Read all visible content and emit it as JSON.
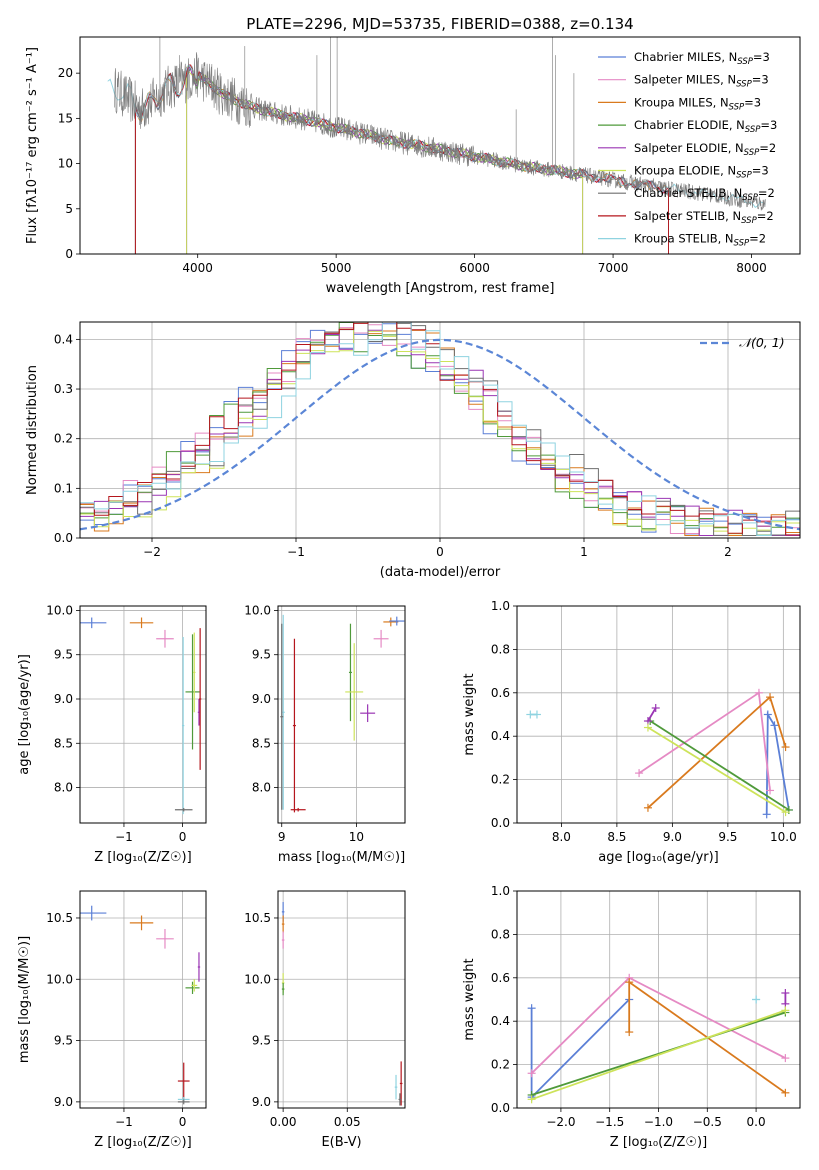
{
  "figure": {
    "title": "PLATE=2296, MJD=53735, FIBERID=0388, z=0.134"
  },
  "series_styles": [
    {
      "name": "Chabrier MILES",
      "color": "#5b7fd6"
    },
    {
      "name": "Salpeter MILES",
      "color": "#e58ac4"
    },
    {
      "name": "Kroupa MILES",
      "color": "#d97a1e"
    },
    {
      "name": "Chabrier ELODIE",
      "color": "#4f9a3a"
    },
    {
      "name": "Salpeter ELODIE",
      "color": "#9a35b4"
    },
    {
      "name": "Kroupa ELODIE",
      "color": "#cde35a"
    },
    {
      "name": "Chabrier STELIB",
      "color": "#6f6f6f"
    },
    {
      "name": "Salpeter STELIB",
      "color": "#b5161d"
    },
    {
      "name": "Kroupa STELIB",
      "color": "#8fd3e0"
    }
  ],
  "chart_data": [
    {
      "id": "spectrum",
      "type": "line",
      "xlabel": "wavelength [Angstrom, rest frame]",
      "ylabel": "Flux [fλ10⁻¹⁷ erg cm⁻² s⁻¹ A⁻¹]",
      "xlim": [
        3150,
        8350
      ],
      "ylim": [
        0,
        24
      ],
      "xticks": [
        4000,
        5000,
        6000,
        7000,
        8000
      ],
      "yticks": [
        0,
        5,
        10,
        15,
        20
      ],
      "legend_position": "top-right",
      "legend": [
        {
          "label": "Chabrier MILES, N",
          "sub": "SSP",
          "tail": "=3",
          "series": 0
        },
        {
          "label": "Salpeter MILES, N",
          "sub": "SSP",
          "tail": "=3",
          "series": 1
        },
        {
          "label": "Kroupa MILES, N",
          "sub": "SSP",
          "tail": "=3",
          "series": 2
        },
        {
          "label": "Chabrier ELODIE, N",
          "sub": "SSP",
          "tail": "=3",
          "series": 3
        },
        {
          "label": "Salpeter ELODIE, N",
          "sub": "SSP",
          "tail": "=2",
          "series": 4
        },
        {
          "label": "Kroupa ELODIE, N",
          "sub": "SSP",
          "tail": "=3",
          "series": 5
        },
        {
          "label": "Chabrier STELIB, N",
          "sub": "SSP",
          "tail": "=2",
          "series": 6
        },
        {
          "label": "Salpeter STELIB, N",
          "sub": "SSP",
          "tail": "=2",
          "series": 7
        },
        {
          "label": "Kroupa STELIB, N",
          "sub": "SSP",
          "tail": "=2",
          "series": 8
        }
      ],
      "data_series": {
        "x": [
          3400,
          3600,
          3800,
          4000,
          4200,
          4400,
          4600,
          4800,
          5000,
          5200,
          5400,
          5600,
          5800,
          6000,
          6200,
          6400,
          6600,
          6800,
          7000,
          7200,
          7400,
          7600,
          7800,
          8000,
          8100
        ],
        "y": [
          18.3,
          16.0,
          18.5,
          19.8,
          17.5,
          16.2,
          15.4,
          14.8,
          14.0,
          13.3,
          12.5,
          12.0,
          11.4,
          10.8,
          10.2,
          9.6,
          9.2,
          8.7,
          8.2,
          7.7,
          7.2,
          6.8,
          6.3,
          5.8,
          5.5
        ]
      },
      "model_ranges": [
        {
          "series": 0,
          "xmin": 3550,
          "xmax": 7400
        },
        {
          "series": 1,
          "xmin": 3550,
          "xmax": 7400
        },
        {
          "series": 2,
          "xmin": 3550,
          "xmax": 7400
        },
        {
          "series": 3,
          "xmin": 3920,
          "xmax": 6780
        },
        {
          "series": 4,
          "xmin": 3920,
          "xmax": 6780
        },
        {
          "series": 5,
          "xmin": 3920,
          "xmax": 6780
        },
        {
          "series": 6,
          "xmin": 3550,
          "xmax": 7400
        },
        {
          "series": 7,
          "xmin": 3550,
          "xmax": 7400
        },
        {
          "series": 8,
          "xmin": 3350,
          "xmax": 8100
        }
      ]
    },
    {
      "id": "residuals",
      "type": "line",
      "xlabel": "(data-model)/error",
      "ylabel": "Normed distribution",
      "xlim": [
        -2.5,
        2.5
      ],
      "ylim": [
        0,
        0.435
      ],
      "xticks": [
        -2,
        -1,
        0,
        1,
        2
      ],
      "yticks": [
        0.0,
        0.1,
        0.2,
        0.3,
        0.4
      ],
      "legend_position": "top-right",
      "legend": [
        {
          "label": "𝒩(0, 1)"
        }
      ],
      "gaussian": {
        "mu": 0,
        "sigma": 1
      },
      "hist_bin_width": 0.1,
      "hist_start": -2.5,
      "hist_peaks": [
        -0.55,
        -0.5,
        -0.45,
        -0.55,
        -0.45,
        -0.45,
        -0.4,
        -0.5,
        -0.35
      ],
      "hist_widths": [
        0.85,
        0.85,
        0.8,
        0.85,
        0.85,
        0.8,
        0.85,
        0.85,
        0.85
      ],
      "hist_heights": [
        0.39,
        0.4,
        0.41,
        0.39,
        0.4,
        0.39,
        0.4,
        0.41,
        0.39
      ]
    },
    {
      "id": "age-vs-Z",
      "type": "scatter",
      "xlabel": "Z [log₁₀(Z/Z☉)]",
      "ylabel": "age  [log₁₀(age/yr)]",
      "xlim": [
        -1.75,
        0.4
      ],
      "ylim": [
        7.6,
        10.05
      ],
      "xticks": [
        -1,
        0
      ],
      "yticks": [
        8.0,
        8.5,
        9.0,
        9.5,
        10.0
      ],
      "points": [
        {
          "series": 0,
          "x": -1.55,
          "y": 9.86,
          "xerr": 0.25,
          "yerr": 0.06
        },
        {
          "series": 2,
          "x": -0.7,
          "y": 9.86,
          "xerr": 0.2,
          "yerr": 0.06
        },
        {
          "series": 1,
          "x": -0.3,
          "y": 9.68,
          "xerr": 0.15,
          "yerr": 0.1
        },
        {
          "series": 8,
          "x": 0.01,
          "y": 8.7,
          "xerr": 0.02,
          "yerr": 1.0
        },
        {
          "series": 6,
          "x": 0.02,
          "y": 7.75,
          "xerr": 0.15,
          "yerr": 0.02
        },
        {
          "series": 3,
          "x": 0.17,
          "y": 9.08,
          "xerr": 0.12,
          "yerr": 0.65
        },
        {
          "series": 5,
          "x": 0.2,
          "y": 9.3,
          "xerr": 0.02,
          "yerr": 0.45
        },
        {
          "series": 4,
          "x": 0.28,
          "y": 8.85,
          "xerr": 0.02,
          "yerr": 0.15
        },
        {
          "series": 7,
          "x": 0.3,
          "y": 9.0,
          "xerr": 0.02,
          "yerr": 0.8
        }
      ]
    },
    {
      "id": "age-vs-mass",
      "type": "scatter",
      "xlabel": "mass [log₁₀(M/M☉)]",
      "ylabel": "",
      "xlim": [
        8.95,
        10.65
      ],
      "ylim": [
        7.6,
        10.05
      ],
      "xticks": [
        9,
        10
      ],
      "yticks": [
        8.0,
        8.5,
        9.0,
        9.5,
        10.0
      ],
      "points": [
        {
          "series": 8,
          "x": 9.02,
          "y": 8.85,
          "xerr": 0.02,
          "yerr": 1.1
        },
        {
          "series": 6,
          "x": 9.0,
          "y": 8.8,
          "xerr": 0.02,
          "yerr": 1.05
        },
        {
          "series": 7,
          "x": 9.17,
          "y": 8.7,
          "xerr": 0.02,
          "yerr": 0.98
        },
        {
          "series": 7,
          "x": 9.22,
          "y": 7.75,
          "xerr": 0.1,
          "yerr": 0.02
        },
        {
          "series": 3,
          "x": 9.92,
          "y": 9.3,
          "xerr": 0.02,
          "yerr": 0.55
        },
        {
          "series": 5,
          "x": 9.97,
          "y": 9.08,
          "xerr": 0.12,
          "yerr": 0.55
        },
        {
          "series": 4,
          "x": 10.15,
          "y": 8.84,
          "xerr": 0.1,
          "yerr": 0.1
        },
        {
          "series": 1,
          "x": 10.33,
          "y": 9.68,
          "xerr": 0.1,
          "yerr": 0.1
        },
        {
          "series": 2,
          "x": 10.46,
          "y": 9.87,
          "xerr": 0.1,
          "yerr": 0.05
        },
        {
          "series": 0,
          "x": 10.54,
          "y": 9.88,
          "xerr": 0.1,
          "yerr": 0.05
        }
      ]
    },
    {
      "id": "massweight-vs-age",
      "type": "line",
      "xlabel": "age  [log₁₀(age/yr)]",
      "ylabel": "mass weight",
      "xlim": [
        7.6,
        10.15
      ],
      "ylim": [
        0,
        1.0
      ],
      "xticks": [
        8.0,
        8.5,
        9.0,
        9.5,
        10.0
      ],
      "yticks": [
        0.0,
        0.2,
        0.4,
        0.6,
        0.8,
        1.0
      ],
      "series": [
        {
          "series": 8,
          "x": [
            7.72,
            7.78
          ],
          "y": [
            0.5,
            0.5
          ]
        },
        {
          "series": 0,
          "x": [
            9.85,
            9.86,
            9.92,
            10.05
          ],
          "y": [
            0.04,
            0.5,
            0.45,
            0.06
          ]
        },
        {
          "series": 1,
          "x": [
            8.7,
            9.78,
            9.88
          ],
          "y": [
            0.23,
            0.6,
            0.15
          ]
        },
        {
          "series": 2,
          "x": [
            8.78,
            9.88,
            10.02
          ],
          "y": [
            0.07,
            0.58,
            0.35
          ]
        },
        {
          "series": 3,
          "x": [
            8.8,
            10.05
          ],
          "y": [
            0.47,
            0.06
          ]
        },
        {
          "series": 4,
          "x": [
            8.78,
            8.85
          ],
          "y": [
            0.47,
            0.53
          ]
        },
        {
          "series": 5,
          "x": [
            8.78,
            10.02
          ],
          "y": [
            0.44,
            0.05
          ]
        }
      ]
    },
    {
      "id": "mass-vs-Z",
      "type": "scatter",
      "xlabel": "Z [log₁₀(Z/Z☉)]",
      "ylabel": "mass [log₁₀(M/M☉)]",
      "xlim": [
        -1.75,
        0.4
      ],
      "ylim": [
        8.95,
        10.72
      ],
      "xticks": [
        -1,
        0
      ],
      "yticks": [
        9.0,
        9.5,
        10.0,
        10.5
      ],
      "points": [
        {
          "series": 0,
          "x": -1.55,
          "y": 10.54,
          "xerr": 0.25,
          "yerr": 0.06
        },
        {
          "series": 2,
          "x": -0.7,
          "y": 10.46,
          "xerr": 0.2,
          "yerr": 0.06
        },
        {
          "series": 1,
          "x": -0.3,
          "y": 10.33,
          "xerr": 0.15,
          "yerr": 0.08
        },
        {
          "series": 4,
          "x": 0.28,
          "y": 10.1,
          "xerr": 0.02,
          "yerr": 0.12
        },
        {
          "series": 3,
          "x": 0.17,
          "y": 9.93,
          "xerr": 0.12,
          "yerr": 0.05
        },
        {
          "series": 5,
          "x": 0.2,
          "y": 9.95,
          "xerr": 0.05,
          "yerr": 0.05
        },
        {
          "series": 7,
          "x": 0.02,
          "y": 9.17,
          "xerr": 0.1,
          "yerr": 0.15
        },
        {
          "series": 8,
          "x": 0.02,
          "y": 9.02,
          "xerr": 0.1,
          "yerr": 0.02
        },
        {
          "series": 6,
          "x": 0.02,
          "y": 9.0,
          "xerr": 0.1,
          "yerr": 0.02
        }
      ]
    },
    {
      "id": "mass-vs-EBV",
      "type": "scatter",
      "xlabel": "E(B-V)",
      "ylabel": "",
      "xlim": [
        -0.004,
        0.095
      ],
      "ylim": [
        8.95,
        10.72
      ],
      "xticks": [
        0.0,
        0.05
      ],
      "yticks": [
        9.0,
        9.5,
        10.0,
        10.5
      ],
      "points": [
        {
          "series": 0,
          "x": 0.0,
          "y": 10.55,
          "xerr": 0.001,
          "yerr": 0.08
        },
        {
          "series": 2,
          "x": 0.0,
          "y": 10.45,
          "xerr": 0.001,
          "yerr": 0.07
        },
        {
          "series": 1,
          "x": 0.0,
          "y": 10.32,
          "xerr": 0.001,
          "yerr": 0.07
        },
        {
          "series": 5,
          "x": 0.0,
          "y": 9.97,
          "xerr": 0.001,
          "yerr": 0.08
        },
        {
          "series": 3,
          "x": 0.0,
          "y": 9.92,
          "xerr": 0.001,
          "yerr": 0.05
        },
        {
          "series": 8,
          "x": 0.088,
          "y": 9.12,
          "xerr": 0.001,
          "yerr": 0.1
        },
        {
          "series": 7,
          "x": 0.092,
          "y": 9.15,
          "xerr": 0.001,
          "yerr": 0.18
        },
        {
          "series": 6,
          "x": 0.091,
          "y": 9.02,
          "xerr": 0.001,
          "yerr": 0.05
        }
      ]
    },
    {
      "id": "massweight-vs-Z",
      "type": "line",
      "xlabel": "Z [log₁₀(Z/Z☉)]",
      "ylabel": "mass weight",
      "xlim": [
        -2.45,
        0.45
      ],
      "ylim": [
        0,
        1.0
      ],
      "xticks": [
        -2.0,
        -1.5,
        -1.0,
        -0.5,
        0.0
      ],
      "yticks": [
        0.0,
        0.2,
        0.4,
        0.6,
        0.8,
        1.0
      ],
      "series": [
        {
          "series": 0,
          "x": [
            -2.3,
            -2.3,
            -1.3
          ],
          "y": [
            0.46,
            0.05,
            0.5
          ]
        },
        {
          "series": 1,
          "x": [
            -2.3,
            -1.3,
            0.3
          ],
          "y": [
            0.16,
            0.6,
            0.23
          ]
        },
        {
          "series": 2,
          "x": [
            -1.3,
            -1.3,
            0.3
          ],
          "y": [
            0.35,
            0.58,
            0.07
          ]
        },
        {
          "series": 3,
          "x": [
            -2.3,
            0.3
          ],
          "y": [
            0.06,
            0.44
          ]
        },
        {
          "series": 4,
          "x": [
            0.3,
            0.3
          ],
          "y": [
            0.48,
            0.53
          ]
        },
        {
          "series": 5,
          "x": [
            -2.3,
            0.3
          ],
          "y": [
            0.04,
            0.45
          ]
        },
        {
          "series": 8,
          "x": [
            0.0,
            0.0
          ],
          "y": [
            0.5,
            0.5
          ]
        }
      ]
    }
  ]
}
